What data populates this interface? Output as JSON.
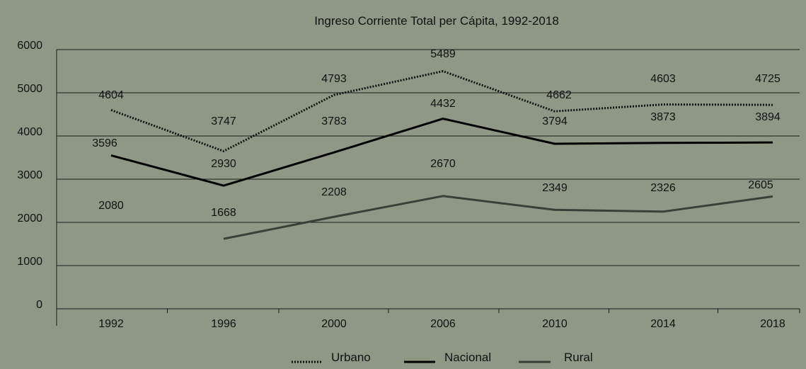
{
  "chart_data": {
    "type": "line",
    "title": "Ingreso Corriente Total per Cápita, 1992-2018",
    "xlabel": "",
    "ylabel": "",
    "categories": [
      "1992",
      "1996",
      "2000",
      "2006",
      "2010",
      "2014",
      "2018"
    ],
    "ylim": [
      0,
      6000
    ],
    "yticks": [
      0,
      1000,
      2000,
      3000,
      4000,
      5000,
      6000
    ],
    "grid": true,
    "legend_position": "bottom",
    "series": [
      {
        "name": "Urbano",
        "style": "dotted",
        "color": "#111111",
        "values": [
          4604,
          3747,
          4793,
          5489,
          4662,
          4603,
          4725
        ],
        "plotted": [
          4600,
          3650,
          4950,
          5500,
          4570,
          4730,
          4720
        ]
      },
      {
        "name": "Nacional",
        "style": "solid",
        "color": "#000000",
        "values": [
          3596,
          2930,
          3783,
          4432,
          3794,
          3873,
          3894
        ],
        "plotted": [
          3550,
          2850,
          3620,
          4400,
          3820,
          3840,
          3850
        ]
      },
      {
        "name": "Rural",
        "style": "solid",
        "color": "#3a3f38",
        "values": [
          2080,
          1668,
          2208,
          2670,
          2349,
          2326,
          2605
        ],
        "plotted": [
          null,
          1620,
          2130,
          2610,
          2290,
          2250,
          2600
        ]
      }
    ]
  }
}
